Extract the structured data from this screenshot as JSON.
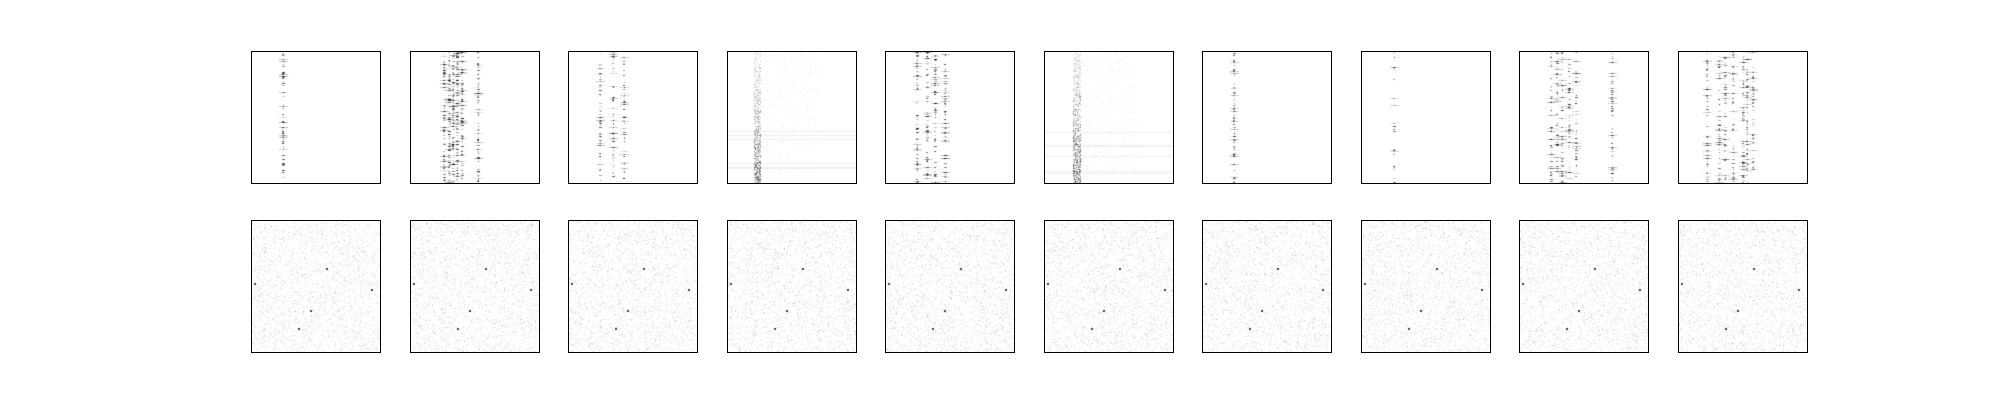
{
  "figure": {
    "background": "#ffffff",
    "frame_color": "#000000",
    "ink_color": "#000000"
  },
  "grid": {
    "rows": 2,
    "columns": 10
  },
  "rows": [
    {
      "name": "top-row",
      "panels": [
        {
          "kind": "sparse-columns",
          "column_fractions": [
            0.24
          ],
          "rows_dense": 0.8,
          "intensity": 0.55
        },
        {
          "kind": "sparse-columns",
          "column_fractions": [
            0.26,
            0.3,
            0.33,
            0.36,
            0.4,
            0.52
          ],
          "rows_dense": 0.9,
          "intensity": 0.6
        },
        {
          "kind": "sparse-columns",
          "column_fractions": [
            0.24,
            0.34,
            0.43
          ],
          "rows_dense": 0.7,
          "intensity": 0.5
        },
        {
          "kind": "vertical-band",
          "column_fractions": [
            0.2,
            0.25
          ],
          "rows_dense": 1.0,
          "intensity": 0.7
        },
        {
          "kind": "sparse-columns",
          "column_fractions": [
            0.24,
            0.32,
            0.38,
            0.46
          ],
          "rows_dense": 0.75,
          "intensity": 0.55
        },
        {
          "kind": "vertical-band",
          "column_fractions": [
            0.22,
            0.27
          ],
          "rows_dense": 1.0,
          "intensity": 0.75
        },
        {
          "kind": "sparse-columns",
          "column_fractions": [
            0.24
          ],
          "rows_dense": 0.8,
          "intensity": 0.5
        },
        {
          "kind": "sparse-columns",
          "column_fractions": [
            0.25
          ],
          "rows_dense": 0.3,
          "intensity": 0.55
        },
        {
          "kind": "sparse-columns",
          "column_fractions": [
            0.24,
            0.29,
            0.33,
            0.38,
            0.44,
            0.72
          ],
          "rows_dense": 0.6,
          "intensity": 0.55
        },
        {
          "kind": "sparse-columns",
          "column_fractions": [
            0.22,
            0.31,
            0.36,
            0.42,
            0.5,
            0.53,
            0.58
          ],
          "rows_dense": 0.7,
          "intensity": 0.45
        }
      ]
    },
    {
      "name": "bottom-row",
      "panels": [
        {
          "kind": "noise",
          "density": 0.2,
          "intensity": 0.15
        },
        {
          "kind": "noise",
          "density": 0.2,
          "intensity": 0.15
        },
        {
          "kind": "noise",
          "density": 0.2,
          "intensity": 0.15
        },
        {
          "kind": "noise",
          "density": 0.2,
          "intensity": 0.15
        },
        {
          "kind": "noise",
          "density": 0.2,
          "intensity": 0.15
        },
        {
          "kind": "noise",
          "density": 0.2,
          "intensity": 0.15
        },
        {
          "kind": "noise",
          "density": 0.2,
          "intensity": 0.15
        },
        {
          "kind": "noise",
          "density": 0.2,
          "intensity": 0.15
        },
        {
          "kind": "noise",
          "density": 0.2,
          "intensity": 0.15
        },
        {
          "kind": "noise",
          "density": 0.2,
          "intensity": 0.15
        }
      ]
    }
  ]
}
